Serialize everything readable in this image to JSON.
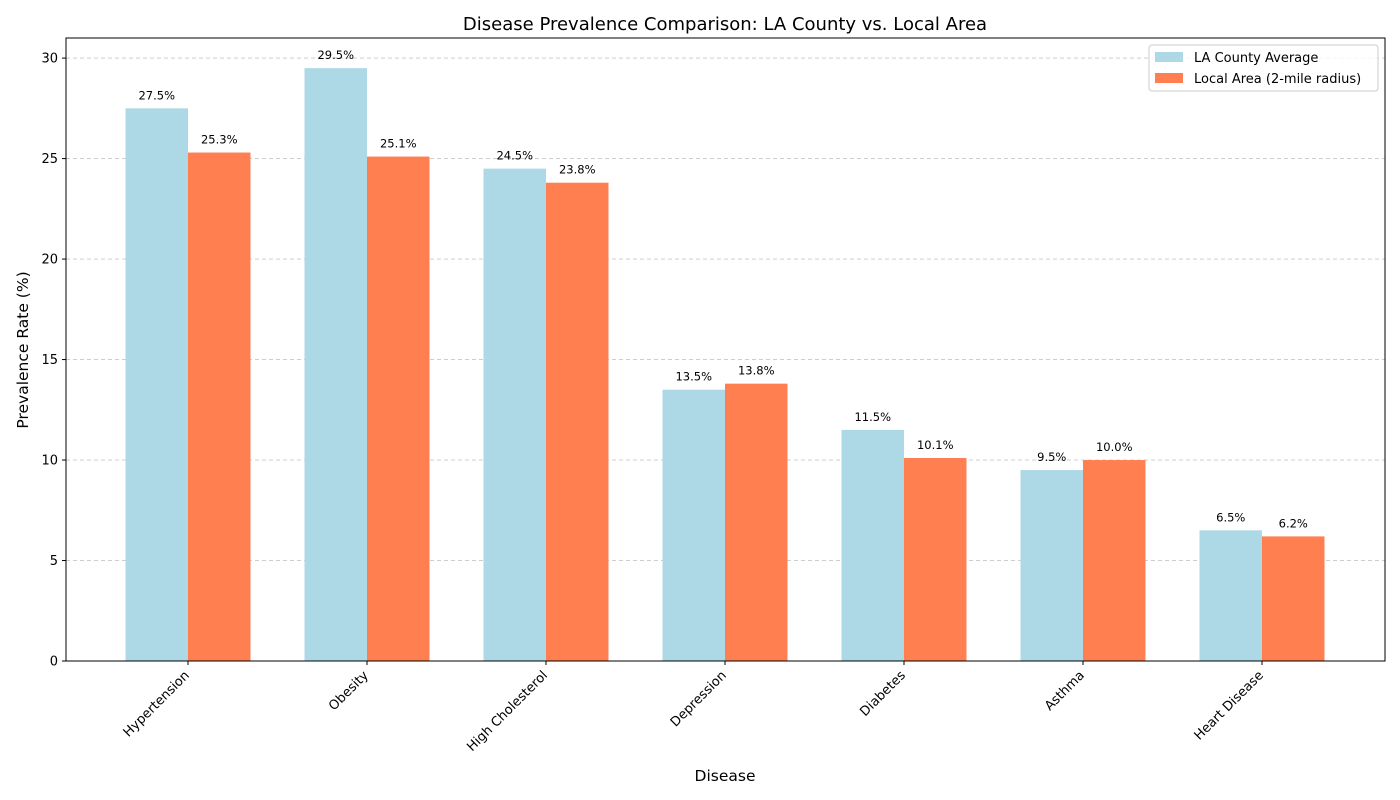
{
  "chart_data": {
    "type": "bar",
    "title": "Disease Prevalence Comparison: LA County vs. Local Area",
    "xlabel": "Disease",
    "ylabel": "Prevalence Rate (%)",
    "ylim": [
      0,
      31
    ],
    "yticks": [
      0,
      5,
      10,
      15,
      20,
      25,
      30
    ],
    "grid": "y-dashed",
    "legend_position": "top-right",
    "categories": [
      "Hypertension",
      "Obesity",
      "High Cholesterol",
      "Depression",
      "Diabetes",
      "Asthma",
      "Heart Disease"
    ],
    "series": [
      {
        "name": "LA County Average",
        "color": "#add8e6",
        "values": [
          27.5,
          29.5,
          24.5,
          13.5,
          11.5,
          9.5,
          6.5
        ],
        "labels": [
          "27.5%",
          "29.5%",
          "24.5%",
          "13.5%",
          "11.5%",
          "9.5%",
          "6.5%"
        ]
      },
      {
        "name": "Local Area (2-mile radius)",
        "color": "#ff7f50",
        "values": [
          25.3,
          25.1,
          23.8,
          13.8,
          10.1,
          10.0,
          6.2
        ],
        "labels": [
          "25.3%",
          "25.1%",
          "23.8%",
          "13.8%",
          "10.1%",
          "10.0%",
          "6.2%"
        ]
      }
    ]
  }
}
